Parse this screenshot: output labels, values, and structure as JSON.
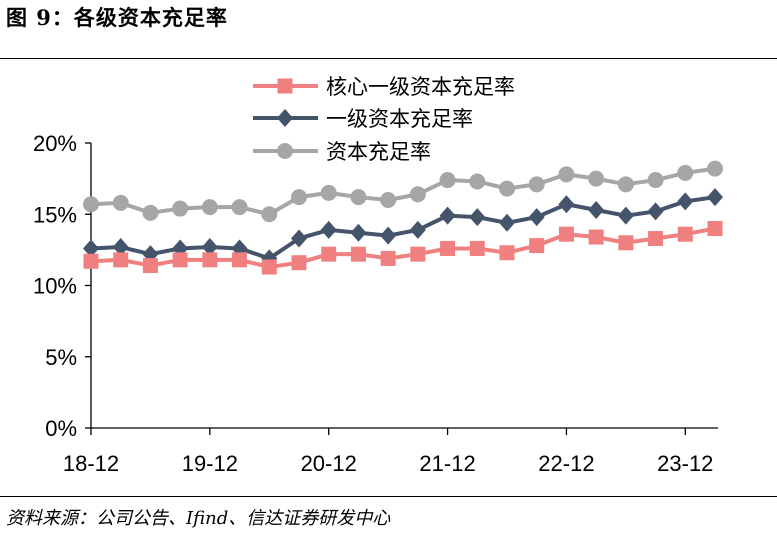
{
  "figure": {
    "title": "图 9：各级资本充足率",
    "source": "资料来源：公司公告、Ifind、信达证券研发中心"
  },
  "chart_data": {
    "type": "line",
    "x": [
      "18-12",
      "19-03",
      "19-06",
      "19-09",
      "19-12",
      "20-03",
      "20-06",
      "20-09",
      "20-12",
      "21-03",
      "21-06",
      "21-09",
      "21-12",
      "22-03",
      "22-06",
      "22-09",
      "22-12",
      "23-03",
      "23-06",
      "23-09",
      "23-12",
      "24-03"
    ],
    "x_tick_labels": [
      "18-12",
      "19-12",
      "20-12",
      "21-12",
      "22-12",
      "23-12"
    ],
    "y_tick_labels": [
      "0%",
      "5%",
      "10%",
      "15%",
      "20%"
    ],
    "ylim": [
      0,
      20
    ],
    "grid": false,
    "legend_position": "top-center",
    "series": [
      {
        "name": "核心一级资本充足率",
        "color": "#F08080",
        "marker": "square",
        "values": [
          11.7,
          11.8,
          11.4,
          11.8,
          11.8,
          11.8,
          11.3,
          11.6,
          12.2,
          12.2,
          11.9,
          12.2,
          12.6,
          12.6,
          12.3,
          12.8,
          13.6,
          13.4,
          13.0,
          13.3,
          13.6,
          14.0
        ]
      },
      {
        "name": "一级资本充足率",
        "color": "#44546A",
        "marker": "diamond",
        "values": [
          12.6,
          12.7,
          12.2,
          12.6,
          12.7,
          12.6,
          11.9,
          13.3,
          13.9,
          13.7,
          13.5,
          13.9,
          14.9,
          14.8,
          14.4,
          14.8,
          15.7,
          15.3,
          14.9,
          15.2,
          15.9,
          16.2
        ]
      },
      {
        "name": "资本充足率",
        "color": "#A6A6A6",
        "marker": "circle",
        "values": [
          15.7,
          15.8,
          15.1,
          15.4,
          15.5,
          15.5,
          15.0,
          16.2,
          16.5,
          16.2,
          16.0,
          16.4,
          17.4,
          17.3,
          16.8,
          17.1,
          17.8,
          17.5,
          17.1,
          17.4,
          17.9,
          18.2
        ]
      }
    ]
  }
}
